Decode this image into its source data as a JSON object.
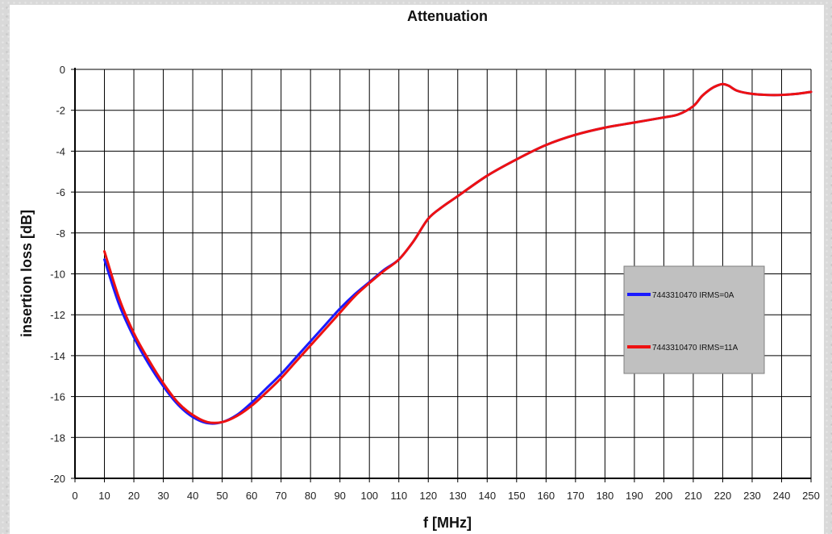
{
  "chart_data": {
    "type": "line",
    "title": "Attenuation",
    "xlabel": "f [MHz]",
    "ylabel": "insertion loss  [dB]",
    "xlim": [
      0,
      250
    ],
    "ylim": [
      -20,
      0
    ],
    "x_ticks": [
      0,
      10,
      20,
      30,
      40,
      50,
      60,
      70,
      80,
      90,
      100,
      110,
      120,
      130,
      140,
      150,
      160,
      170,
      180,
      190,
      200,
      210,
      220,
      230,
      240,
      250
    ],
    "y_ticks": [
      0,
      -2,
      -4,
      -6,
      -8,
      -10,
      -12,
      -14,
      -16,
      -18,
      -20
    ],
    "grid": true,
    "legend_position": "right",
    "series": [
      {
        "name": "7443310470 IRMS=0A",
        "color": "#1a1aff",
        "x": [
          10,
          15,
          20,
          25,
          30,
          35,
          40,
          45,
          50,
          55,
          60,
          65,
          70,
          75,
          80,
          85,
          90,
          95,
          100,
          105,
          110,
          115,
          120,
          125,
          130,
          140,
          150,
          160,
          170,
          180,
          190,
          200,
          205,
          210,
          213,
          216,
          218,
          220,
          222,
          225,
          230,
          235,
          240,
          245,
          250
        ],
        "y": [
          -9.3,
          -11.5,
          -13.1,
          -14.4,
          -15.5,
          -16.4,
          -17.0,
          -17.3,
          -17.25,
          -16.9,
          -16.3,
          -15.6,
          -14.9,
          -14.1,
          -13.3,
          -12.5,
          -11.7,
          -11.0,
          -10.4,
          -9.8,
          -9.3,
          -8.4,
          -7.3,
          -6.7,
          -6.2,
          -5.2,
          -4.4,
          -3.7,
          -3.2,
          -2.85,
          -2.6,
          -2.35,
          -2.2,
          -1.8,
          -1.3,
          -0.95,
          -0.8,
          -0.72,
          -0.8,
          -1.05,
          -1.2,
          -1.25,
          -1.25,
          -1.2,
          -1.1
        ]
      },
      {
        "name": "7443310470 IRMS=11A",
        "color": "#ee1111",
        "x": [
          10,
          15,
          20,
          25,
          30,
          35,
          40,
          45,
          50,
          55,
          60,
          65,
          70,
          75,
          80,
          85,
          90,
          95,
          100,
          105,
          110,
          115,
          120,
          125,
          130,
          140,
          150,
          160,
          170,
          180,
          190,
          200,
          205,
          210,
          213,
          216,
          218,
          220,
          222,
          225,
          230,
          235,
          240,
          245,
          250
        ],
        "y": [
          -8.9,
          -11.2,
          -12.9,
          -14.2,
          -15.35,
          -16.3,
          -16.9,
          -17.25,
          -17.25,
          -16.95,
          -16.45,
          -15.8,
          -15.1,
          -14.3,
          -13.5,
          -12.7,
          -11.9,
          -11.1,
          -10.45,
          -9.85,
          -9.3,
          -8.4,
          -7.3,
          -6.7,
          -6.2,
          -5.2,
          -4.4,
          -3.7,
          -3.2,
          -2.85,
          -2.6,
          -2.35,
          -2.2,
          -1.8,
          -1.3,
          -0.95,
          -0.8,
          -0.72,
          -0.8,
          -1.05,
          -1.2,
          -1.25,
          -1.25,
          -1.2,
          -1.1
        ]
      }
    ]
  }
}
